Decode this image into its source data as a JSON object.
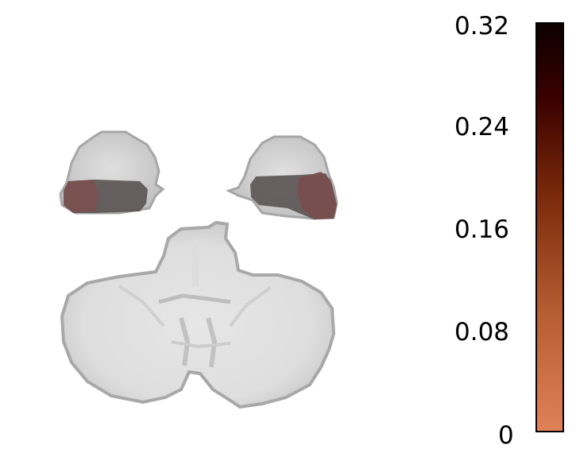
{
  "colorbar": {
    "min_color": "#e08058",
    "mid_color": "#7a2a0a",
    "max_color": "#0d0000",
    "ticks": [
      "0.32",
      "0.24",
      "0.16",
      "0.08",
      "0"
    ]
  },
  "overlay_colors": {
    "anatomy_fill": "#d6d6d6",
    "anatomy_edge": "#a8a8a8",
    "activation_dark": "#5e5656",
    "activation_mid": "#7a5252"
  }
}
